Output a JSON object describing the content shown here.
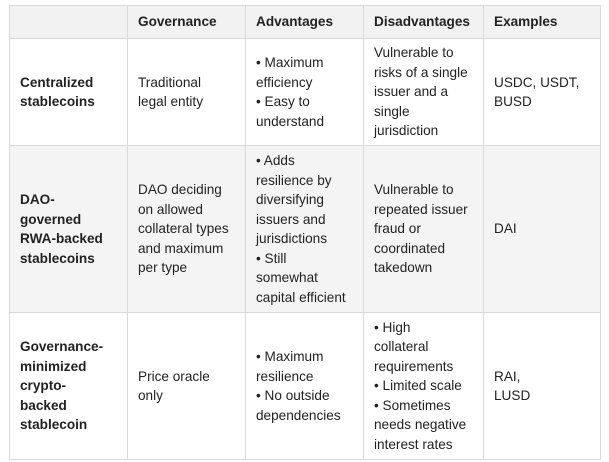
{
  "table": {
    "headers": [
      "",
      "Governance",
      "Advantages",
      "Disadvantages",
      "Examples"
    ],
    "rows": [
      {
        "name_lines": [
          "Centralized",
          "stablecoins"
        ],
        "governance_lines": [
          "Traditional",
          "legal entity"
        ],
        "advantages_lines": [
          "• Maximum",
          "efficiency",
          "• Easy to",
          "understand"
        ],
        "disadvantages_lines": [
          "Vulnerable to",
          "risks of a single",
          "issuer and a",
          "single",
          "jurisdiction"
        ],
        "examples_lines": [
          "USDC, USDT,",
          "BUSD"
        ]
      },
      {
        "name_lines": [
          "DAO-",
          "governed",
          "RWA-backed",
          "stablecoins"
        ],
        "governance_lines": [
          "DAO deciding",
          "on allowed",
          "collateral types",
          "and maximum",
          "per type"
        ],
        "advantages_lines": [
          "• Adds",
          "resilience by",
          "diversifying",
          "issuers and",
          "jurisdictions",
          "• Still",
          "somewhat",
          "capital efficient"
        ],
        "disadvantages_lines": [
          "Vulnerable to",
          "repeated issuer",
          "fraud or",
          "coordinated",
          "takedown"
        ],
        "examples_lines": [
          "DAI"
        ]
      },
      {
        "name_lines": [
          "Governance-",
          "minimized",
          "crypto-",
          "backed",
          "stablecoin"
        ],
        "governance_lines": [
          "Price oracle",
          "only"
        ],
        "advantages_lines": [
          "• Maximum",
          "resilience",
          "• No outside",
          "dependencies"
        ],
        "disadvantages_lines": [
          "• High",
          "collateral",
          "requirements",
          "• Limited scale",
          "• Sometimes",
          "needs negative",
          "interest rates"
        ],
        "examples_lines": [
          "RAI,",
          "LUSD"
        ]
      }
    ]
  }
}
